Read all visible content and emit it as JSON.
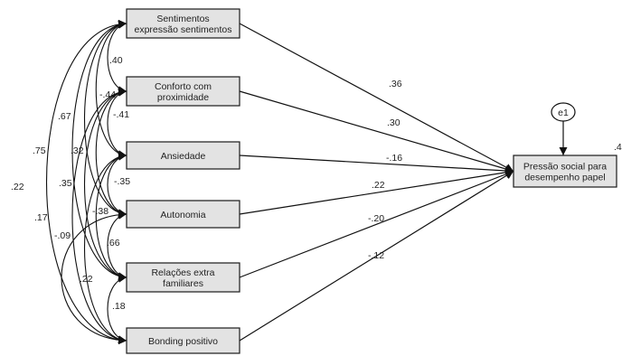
{
  "nodes": {
    "sentimentos": [
      "Sentimentos",
      "expressão sentimentos"
    ],
    "conforto": [
      "Conforto com",
      "proximidade"
    ],
    "ansiedade": [
      "Ansiedade"
    ],
    "autonomia": [
      "Autonomia"
    ],
    "relacoes": [
      "Relações extra",
      "familiares"
    ],
    "bonding": [
      "Bonding positivo"
    ],
    "pressao": [
      "Pressão social para",
      "desempenho papel"
    ],
    "error": "e1",
    "r_squared": ".4"
  },
  "paths": [
    {
      "from": "sentimentos",
      "to": "pressao",
      "coef": ".36"
    },
    {
      "from": "conforto",
      "to": "pressao",
      "coef": ".30"
    },
    {
      "from": "ansiedade",
      "to": "pressao",
      "coef": "-.16"
    },
    {
      "from": "autonomia",
      "to": "pressao",
      "coef": ".22"
    },
    {
      "from": "relacoes",
      "to": "pressao",
      "coef": "-.20"
    },
    {
      "from": "bonding",
      "to": "pressao",
      "coef": "-.12"
    }
  ],
  "correlations": [
    {
      "a": "sentimentos",
      "b": "conforto",
      "value": ".40"
    },
    {
      "a": "conforto",
      "b": "ansiedade",
      "value": "-.41"
    },
    {
      "a": "ansiedade",
      "b": "autonomia",
      "value": "-.35"
    },
    {
      "a": "autonomia",
      "b": "relacoes",
      "value": ".66"
    },
    {
      "a": "relacoes",
      "b": "bonding",
      "value": ".18"
    },
    {
      "a": "sentimentos",
      "b": "ansiedade",
      "value": "-.44"
    },
    {
      "a": "conforto",
      "b": "autonomia",
      "value": ".32"
    },
    {
      "a": "ansiedade",
      "b": "relacoes",
      "value": "-.38"
    },
    {
      "a": "sentimentos",
      "b": "autonomia",
      "value": ".67"
    },
    {
      "a": "conforto",
      "b": "relacoes",
      "value": ".35"
    },
    {
      "a": "ansiedade",
      "b": "bonding",
      "value": "-.09"
    },
    {
      "a": "sentimentos",
      "b": "relacoes",
      "value": ".75"
    },
    {
      "a": "conforto",
      "b": "bonding",
      "value": ".22"
    },
    {
      "a": "autonomia",
      "b": "bonding",
      "value": ".17"
    },
    {
      "a": "sentimentos",
      "b": "bonding",
      "value": ".22"
    }
  ]
}
